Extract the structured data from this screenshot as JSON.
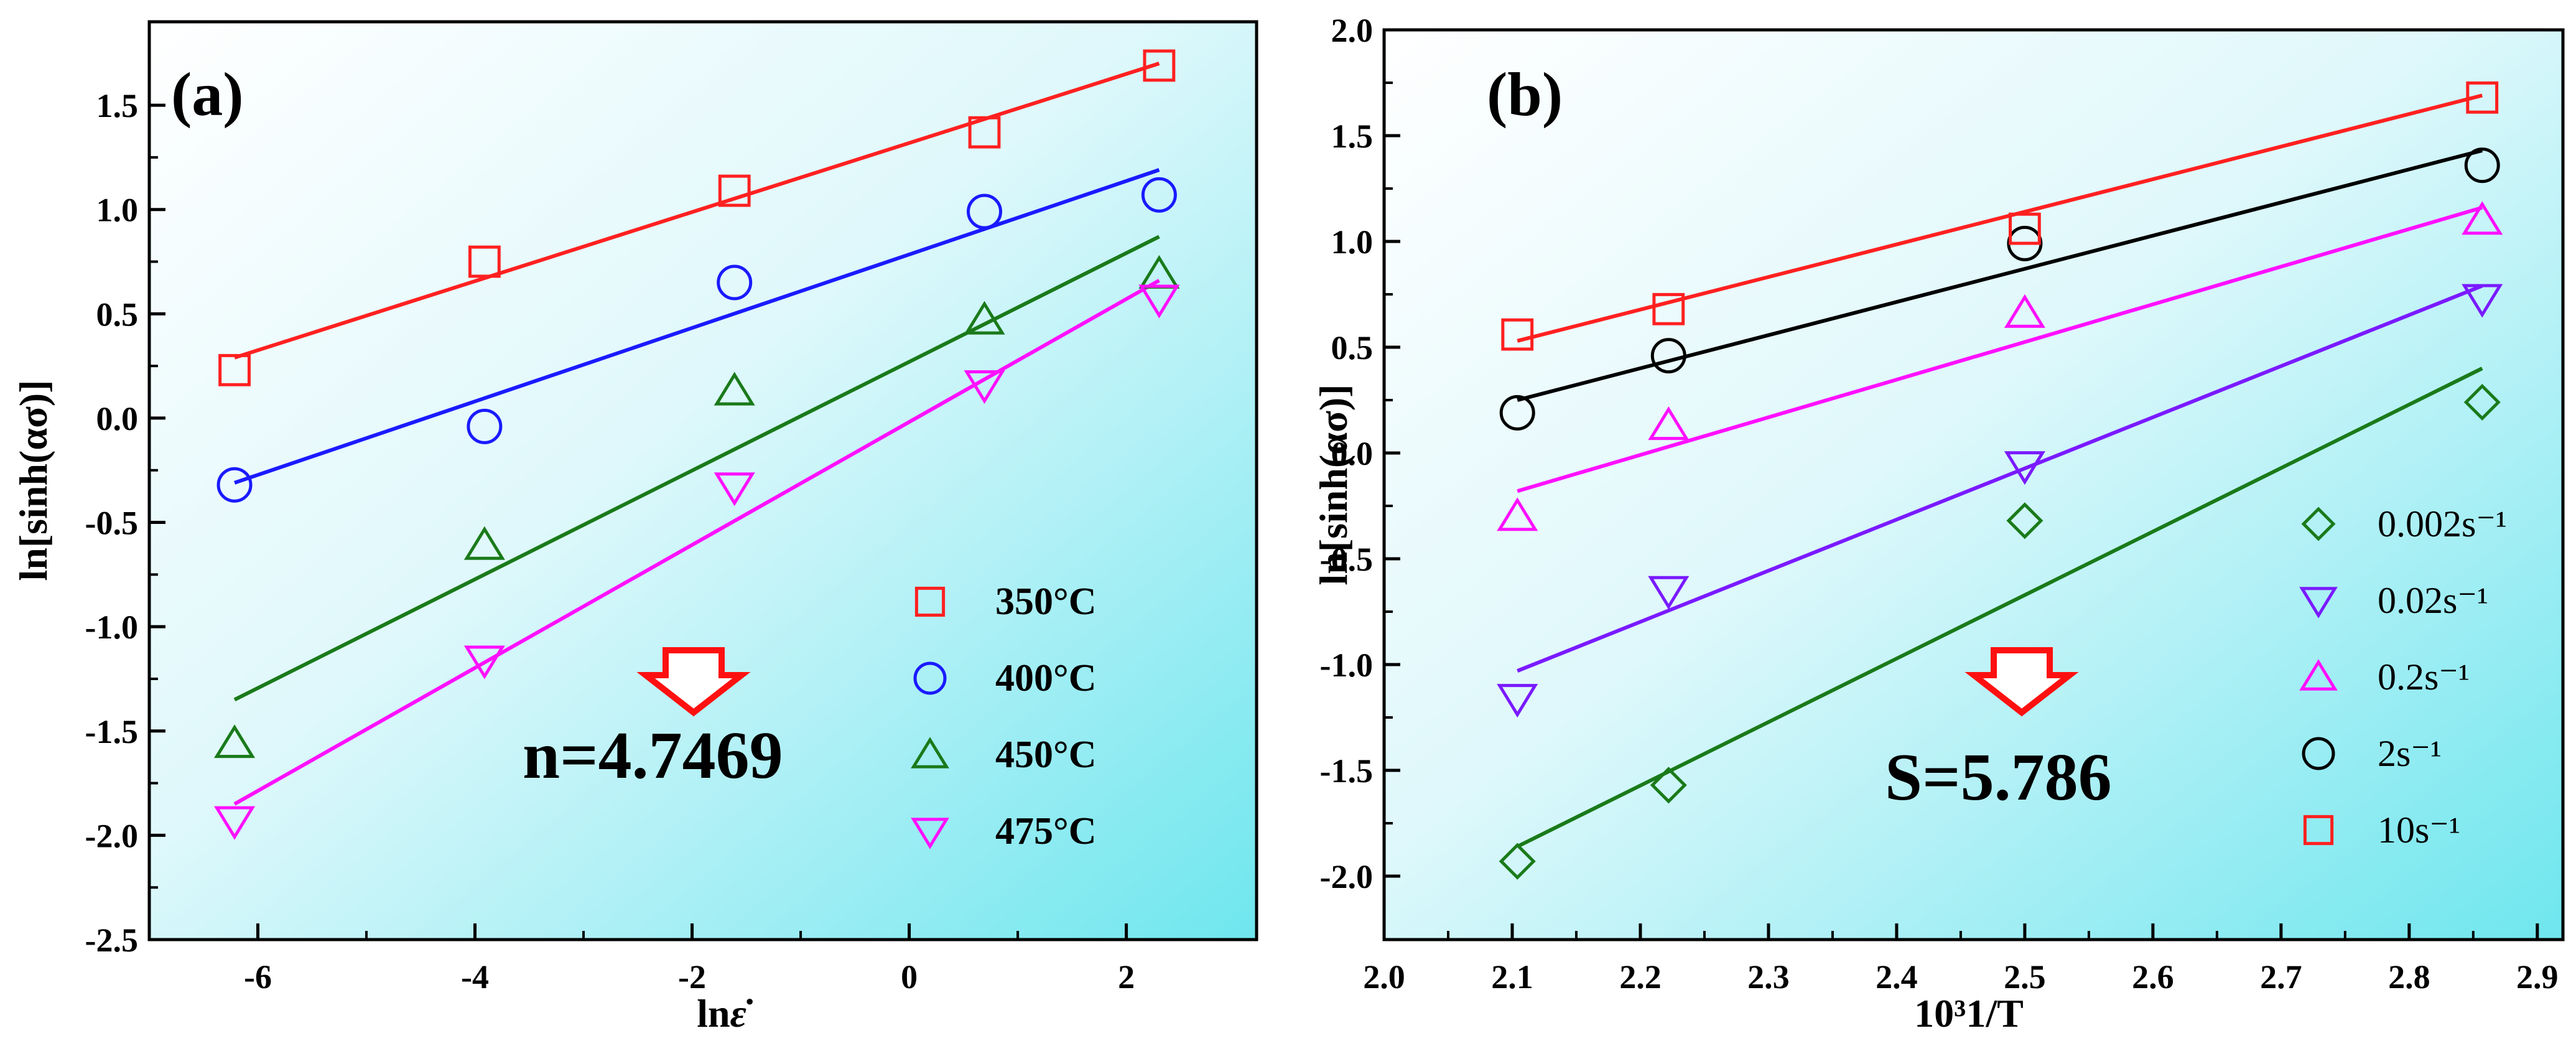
{
  "chart_data": [
    {
      "type": "scatter",
      "panel_label": "(a)",
      "xlabel": "ln",
      "xlabel_symbol": "ε̇",
      "ylabel": "ln[sinh(ασ)]",
      "xlim": [
        -7,
        3.2
      ],
      "ylim": [
        -2.5,
        1.9
      ],
      "xticks": [
        -6,
        -4,
        -2,
        0,
        2
      ],
      "yticks": [
        -2.5,
        -2.0,
        -1.5,
        -1.0,
        -0.5,
        0.0,
        0.5,
        1.0,
        1.5
      ],
      "xtick_labels": [
        "-6",
        "-4",
        "-2",
        "0",
        "2"
      ],
      "ytick_labels": [
        "-2.5",
        "-2.0",
        "-1.5",
        "-1.0",
        "-0.5",
        "0.0",
        "0.5",
        "1.0",
        "1.5"
      ],
      "annotation": "n=4.7469",
      "legend_position": "bottom-right",
      "series": [
        {
          "name": "350°C",
          "marker": "square",
          "color": "#ff2020",
          "x": [
            -6.2146,
            -3.912,
            -1.6094,
            0.6931,
            2.3026
          ],
          "y": [
            0.23,
            0.75,
            1.09,
            1.37,
            1.69
          ],
          "fit": {
            "x0": -6.2146,
            "y0": 0.29,
            "x1": 2.3026,
            "y1": 1.7
          }
        },
        {
          "name": "400°C",
          "marker": "circle",
          "color": "#1a1aff",
          "x": [
            -6.2146,
            -3.912,
            -1.6094,
            0.6931,
            2.3026
          ],
          "y": [
            -0.32,
            -0.04,
            0.65,
            0.99,
            1.07
          ],
          "fit": {
            "x0": -6.2146,
            "y0": -0.31,
            "x1": 2.3026,
            "y1": 1.19
          }
        },
        {
          "name": "450°C",
          "marker": "triangle-up",
          "color": "#1a7a1a",
          "x": [
            -6.2146,
            -3.912,
            -1.6094,
            0.6931,
            2.3026
          ],
          "y": [
            -1.56,
            -0.61,
            0.13,
            0.47,
            0.69
          ],
          "fit": {
            "x0": -6.2146,
            "y0": -1.35,
            "x1": 2.3026,
            "y1": 0.87
          }
        },
        {
          "name": "475°C",
          "marker": "triangle-down",
          "color": "#ff10ff",
          "x": [
            -6.2146,
            -3.912,
            -1.6094,
            0.6931,
            2.3026
          ],
          "y": [
            -1.93,
            -1.16,
            -0.33,
            0.16,
            0.57
          ],
          "fit": {
            "x0": -6.2146,
            "y0": -1.85,
            "x1": 2.3026,
            "y1": 0.66
          }
        }
      ]
    },
    {
      "type": "scatter",
      "panel_label": "(b)",
      "xlabel": "10³1/T",
      "ylabel": "ln[sinh(ασ)]",
      "xlim": [
        2.0,
        2.92
      ],
      "ylim": [
        -2.3,
        2.0
      ],
      "xticks": [
        2.0,
        2.1,
        2.2,
        2.3,
        2.4,
        2.5,
        2.6,
        2.7,
        2.8,
        2.9
      ],
      "yticks": [
        -2.0,
        -1.5,
        -1.0,
        -0.5,
        0.0,
        0.5,
        1.0,
        1.5,
        2.0
      ],
      "xtick_labels": [
        "2.0",
        "2.1",
        "2.2",
        "2.3",
        "2.4",
        "2.5",
        "2.6",
        "2.7",
        "2.8",
        "2.9"
      ],
      "ytick_labels": [
        "-2.0",
        "-1.5",
        "-1.0",
        "-0.5",
        "0.0",
        "0.5",
        "1.0",
        "1.5",
        "2.0"
      ],
      "annotation": "S=5.786",
      "legend_position": "bottom-right",
      "series": [
        {
          "name": "0.002s⁻¹",
          "marker": "diamond",
          "color": "#1a7a1a",
          "x": [
            2.104,
            2.222,
            2.5,
            2.857
          ],
          "y": [
            -1.93,
            -1.57,
            -0.32,
            0.24
          ],
          "fit": {
            "x0": 2.104,
            "y0": -1.86,
            "x1": 2.857,
            "y1": 0.4
          }
        },
        {
          "name": "0.02s⁻¹",
          "marker": "triangle-down",
          "color": "#7a1aff",
          "x": [
            2.104,
            2.222,
            2.5,
            2.857
          ],
          "y": [
            -1.16,
            -0.65,
            -0.06,
            0.73
          ],
          "fit": {
            "x0": 2.104,
            "y0": -1.03,
            "x1": 2.857,
            "y1": 0.79
          }
        },
        {
          "name": "0.2s⁻¹",
          "marker": "triangle-up",
          "color": "#ff10ff",
          "x": [
            2.104,
            2.222,
            2.5,
            2.857
          ],
          "y": [
            -0.3,
            0.13,
            0.66,
            1.1
          ],
          "fit": {
            "x0": 2.104,
            "y0": -0.18,
            "x1": 2.857,
            "y1": 1.16
          }
        },
        {
          "name": "2s⁻¹",
          "marker": "circle",
          "color": "#000000",
          "x": [
            2.104,
            2.222,
            2.5,
            2.857
          ],
          "y": [
            0.19,
            0.46,
            0.99,
            1.36
          ],
          "fit": {
            "x0": 2.104,
            "y0": 0.25,
            "x1": 2.857,
            "y1": 1.43
          }
        },
        {
          "name": "10s⁻¹",
          "marker": "square",
          "color": "#ff2020",
          "x": [
            2.104,
            2.222,
            2.5,
            2.857
          ],
          "y": [
            0.56,
            0.68,
            1.06,
            1.68
          ],
          "fit": {
            "x0": 2.104,
            "y0": 0.53,
            "x1": 2.857,
            "y1": 1.69
          }
        }
      ]
    }
  ]
}
